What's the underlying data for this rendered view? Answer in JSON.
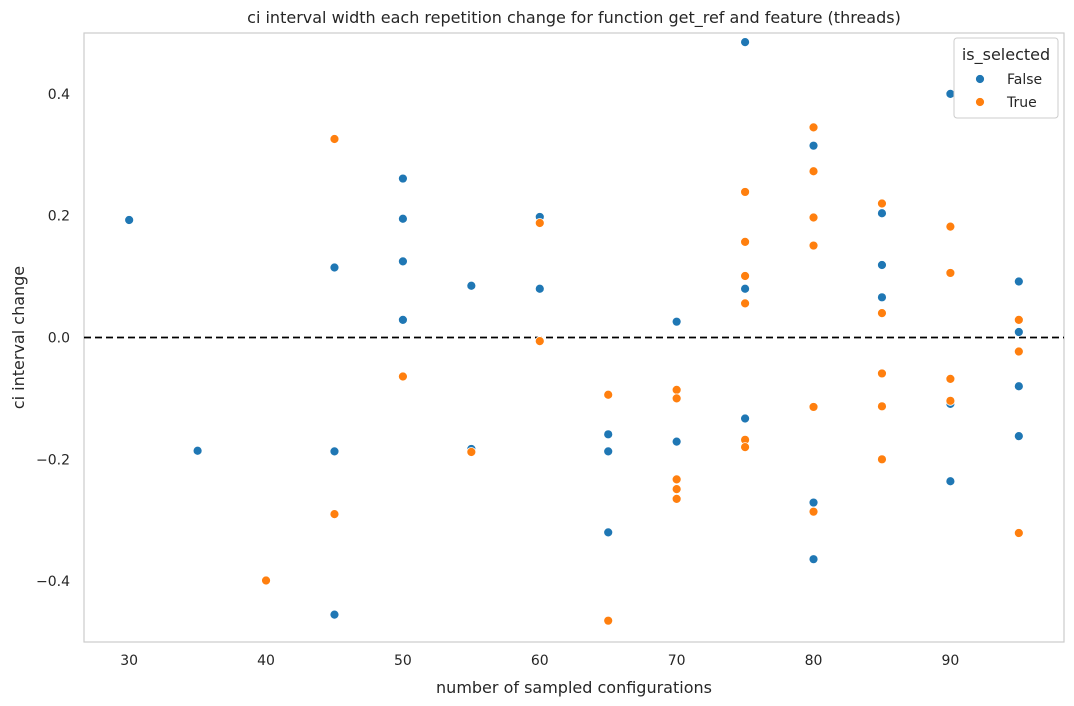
{
  "chart_data": {
    "type": "scatter",
    "title": "ci interval width each repetition change for function get_ref and feature (threads)",
    "xlabel": "number of sampled configurations",
    "ylabel": "ci interval change",
    "xlim": [
      26.7,
      98.3
    ],
    "ylim": [
      -0.5,
      0.5
    ],
    "xticks": [
      30,
      40,
      50,
      60,
      70,
      80,
      90
    ],
    "xtick_labels": [
      "30",
      "40",
      "50",
      "60",
      "70",
      "80",
      "90"
    ],
    "yticks": [
      -0.4,
      -0.2,
      0.0,
      0.2,
      0.4
    ],
    "ytick_labels": [
      "−0.4",
      "−0.2",
      "0.0",
      "0.2",
      "0.4"
    ],
    "grid": false,
    "reference_line": {
      "y": 0.0,
      "style": "dashed",
      "color": "#000000"
    },
    "legend": {
      "title": "is_selected",
      "placement": "top-right"
    },
    "series": [
      {
        "name": "False",
        "color": "#1f77b4",
        "points": [
          [
            30,
            0.193
          ],
          [
            35,
            -0.186
          ],
          [
            45,
            0.115
          ],
          [
            45,
            -0.187
          ],
          [
            45,
            -0.455
          ],
          [
            50,
            0.261
          ],
          [
            50,
            0.195
          ],
          [
            50,
            0.125
          ],
          [
            50,
            0.029
          ],
          [
            55,
            0.085
          ],
          [
            55,
            -0.183
          ],
          [
            60,
            0.198
          ],
          [
            60,
            0.08
          ],
          [
            65,
            -0.159
          ],
          [
            65,
            -0.187
          ],
          [
            65,
            -0.32
          ],
          [
            70,
            0.026
          ],
          [
            70,
            -0.171
          ],
          [
            75,
            0.485
          ],
          [
            75,
            0.08
          ],
          [
            75,
            -0.133
          ],
          [
            80,
            0.315
          ],
          [
            80,
            -0.271
          ],
          [
            80,
            -0.364
          ],
          [
            85,
            0.204
          ],
          [
            85,
            0.119
          ],
          [
            85,
            0.066
          ],
          [
            90,
            0.4
          ],
          [
            90,
            -0.109
          ],
          [
            90,
            -0.236
          ],
          [
            95,
            0.092
          ],
          [
            95,
            0.009
          ],
          [
            95,
            -0.08
          ],
          [
            95,
            -0.162
          ]
        ]
      },
      {
        "name": "True",
        "color": "#ff7f0e",
        "points": [
          [
            40,
            -0.399
          ],
          [
            45,
            0.326
          ],
          [
            45,
            -0.29
          ],
          [
            50,
            -0.064
          ],
          [
            55,
            -0.188
          ],
          [
            60,
            0.188
          ],
          [
            60,
            -0.006
          ],
          [
            65,
            -0.094
          ],
          [
            65,
            -0.465
          ],
          [
            70,
            -0.086
          ],
          [
            70,
            -0.1
          ],
          [
            70,
            -0.233
          ],
          [
            70,
            -0.249
          ],
          [
            70,
            -0.265
          ],
          [
            75,
            0.239
          ],
          [
            75,
            0.157
          ],
          [
            75,
            0.101
          ],
          [
            75,
            0.056
          ],
          [
            75,
            -0.168
          ],
          [
            75,
            -0.18
          ],
          [
            80,
            0.345
          ],
          [
            80,
            0.273
          ],
          [
            80,
            0.197
          ],
          [
            80,
            0.151
          ],
          [
            80,
            -0.114
          ],
          [
            80,
            -0.286
          ],
          [
            85,
            0.22
          ],
          [
            85,
            0.04
          ],
          [
            85,
            -0.059
          ],
          [
            85,
            -0.113
          ],
          [
            85,
            -0.2
          ],
          [
            90,
            0.182
          ],
          [
            90,
            0.106
          ],
          [
            90,
            -0.068
          ],
          [
            90,
            -0.104
          ],
          [
            95,
            0.029
          ],
          [
            95,
            -0.023
          ],
          [
            95,
            -0.321
          ]
        ]
      }
    ]
  }
}
